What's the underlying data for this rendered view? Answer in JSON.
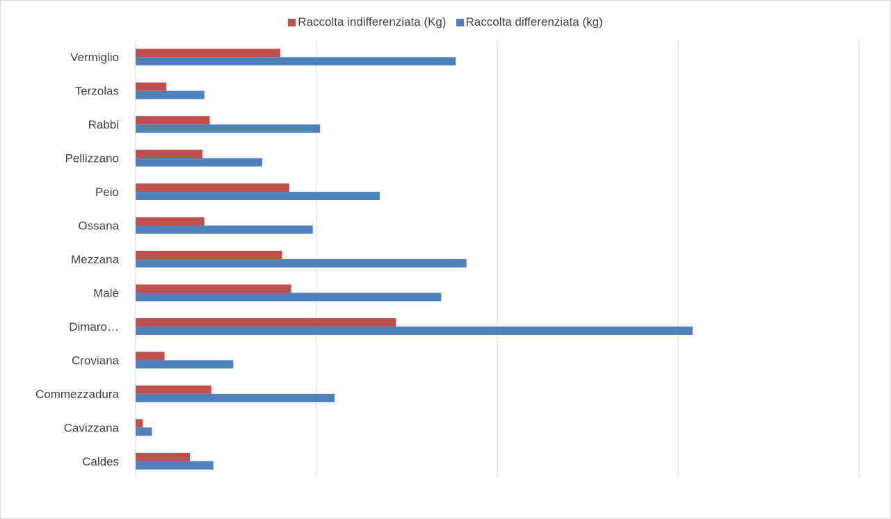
{
  "chart_data": {
    "type": "bar",
    "orientation": "horizontal",
    "categories": [
      "Vermiglio",
      "Terzolas",
      "Rabbi",
      "Pellizzano",
      "Peio",
      "Ossana",
      "Mezzana",
      "Malè",
      "Dimaro…",
      "Croviana",
      "Commezzadura",
      "Cavizzana",
      "Caldes"
    ],
    "series": [
      {
        "name": "Raccolta indifferenziata (Kg)",
        "color": "#c0504d",
        "values": [
          0.8,
          0.17,
          0.41,
          0.37,
          0.85,
          0.38,
          0.81,
          0.86,
          1.44,
          0.16,
          0.42,
          0.04,
          0.3
        ]
      },
      {
        "name": "Raccolta differenziata (kg)",
        "color": "#4f81bd",
        "values": [
          1.77,
          0.38,
          1.02,
          0.7,
          1.35,
          0.98,
          1.83,
          1.69,
          3.08,
          0.54,
          1.1,
          0.09,
          0.43
        ]
      }
    ],
    "xlim": [
      0,
      4
    ],
    "grid": true,
    "tick_labels_shown": false,
    "legend_position": "top",
    "title": "",
    "xlabel": "",
    "ylabel": ""
  }
}
